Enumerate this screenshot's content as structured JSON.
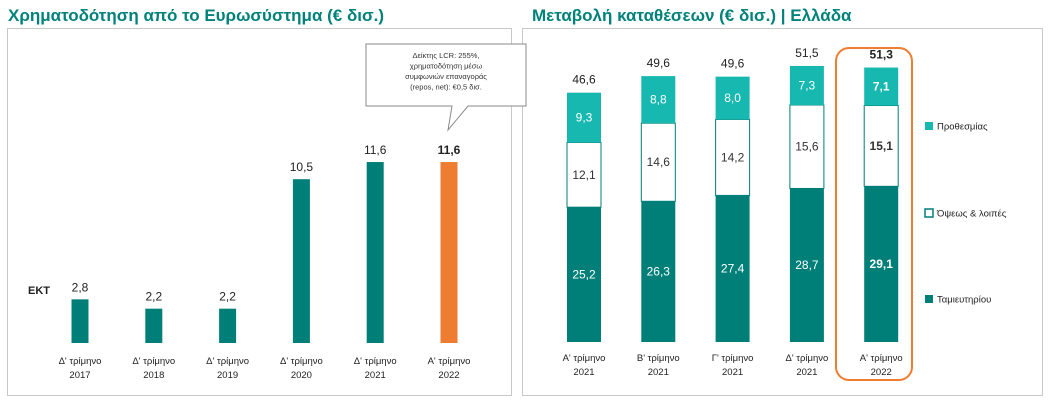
{
  "colors": {
    "teal": "#007f78",
    "light_teal": "#17b8b0",
    "orange": "#ee7d31",
    "title": "#00827a"
  },
  "left": {
    "title": "Χρηματοδότηση από το Ευρωσύστημα (€ δισ.)",
    "series_label": "ΕΚΤ",
    "callout": [
      "Δείκτης LCR: 255%,",
      "χρηματοδότηση μέσω",
      "συμφωνιών επαναγοράς",
      "(repos, net): €0,5 δισ."
    ]
  },
  "right": {
    "title": "Μεταβολή καταθέσεων (€ δισ.) | Ελλάδα"
  },
  "chart_data": [
    {
      "type": "bar",
      "title": "Χρηματοδότηση από το Ευρωσύστημα (€ δισ.)",
      "categories": [
        [
          "Δ' τρίμηνο",
          "2017"
        ],
        [
          "Δ' τρίμηνο",
          "2018"
        ],
        [
          "Δ' τρίμηνο",
          "2019"
        ],
        [
          "Δ' τρίμηνο",
          "2020"
        ],
        [
          "Δ' τρίμηνο",
          "2021"
        ],
        [
          "Α' τρίμηνο",
          "2022"
        ]
      ],
      "series": [
        {
          "name": "ΕΚΤ",
          "values": [
            2.8,
            2.2,
            2.2,
            10.5,
            11.6,
            11.6
          ]
        }
      ],
      "labels": [
        "2,8",
        "2,2",
        "2,2",
        "10,5",
        "11,6",
        "11,6"
      ],
      "highlight_index": 5,
      "ylim": [
        0,
        12.5
      ]
    },
    {
      "type": "bar",
      "stacked": true,
      "title": "Μεταβολή καταθέσεων (€ δισ.) | Ελλάδα",
      "categories": [
        [
          "Α' τρίμηνο",
          "2021"
        ],
        [
          "Β' τρίμηνο",
          "2021"
        ],
        [
          "Γ' τρίμηνο",
          "2021"
        ],
        [
          "Δ' τρίμηνο",
          "2021"
        ],
        [
          "Α' τρίμηνο",
          "2022"
        ]
      ],
      "series": [
        {
          "name": "Ταμιευτηρίου",
          "values": [
            25.2,
            26.3,
            27.4,
            28.7,
            29.1
          ],
          "labels": [
            "25,2",
            "26,3",
            "27,4",
            "28,7",
            "29,1"
          ]
        },
        {
          "name": "Όψεως & λοιπές",
          "values": [
            12.1,
            14.6,
            14.2,
            15.6,
            15.1
          ],
          "labels": [
            "12,1",
            "14,6",
            "14,2",
            "15,6",
            "15,1"
          ]
        },
        {
          "name": "Προθεσμίας",
          "values": [
            9.3,
            8.8,
            8.0,
            7.3,
            7.1
          ],
          "labels": [
            "9,3",
            "8,8",
            "8,0",
            "7,3",
            "7,1"
          ]
        }
      ],
      "totals": [
        46.6,
        49.6,
        49.6,
        51.5,
        51.3
      ],
      "total_labels": [
        "46,6",
        "49,6",
        "49,6",
        "51,5",
        "51,3"
      ],
      "legend_position": "right",
      "highlight_index": 4,
      "ylim": [
        0,
        51.5
      ]
    }
  ]
}
